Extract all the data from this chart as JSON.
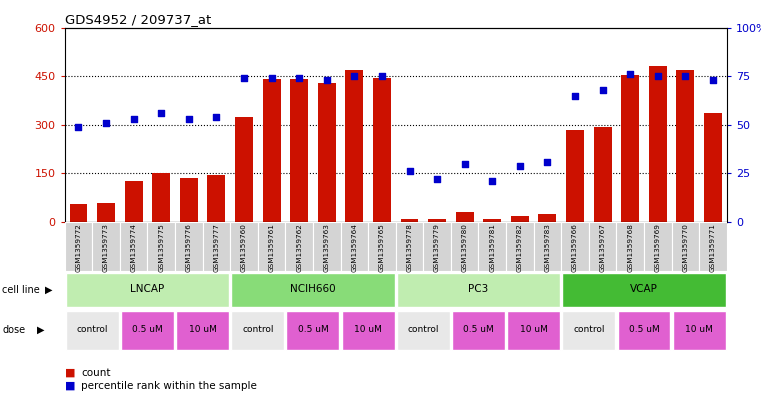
{
  "title": "GDS4952 / 209737_at",
  "samples": [
    "GSM1359772",
    "GSM1359773",
    "GSM1359774",
    "GSM1359775",
    "GSM1359776",
    "GSM1359777",
    "GSM1359760",
    "GSM1359761",
    "GSM1359762",
    "GSM1359763",
    "GSM1359764",
    "GSM1359765",
    "GSM1359778",
    "GSM1359779",
    "GSM1359780",
    "GSM1359781",
    "GSM1359782",
    "GSM1359783",
    "GSM1359766",
    "GSM1359767",
    "GSM1359768",
    "GSM1359769",
    "GSM1359770",
    "GSM1359771"
  ],
  "counts": [
    55,
    58,
    128,
    150,
    135,
    145,
    325,
    440,
    440,
    430,
    470,
    445,
    8,
    10,
    30,
    8,
    18,
    25,
    285,
    292,
    455,
    480,
    470,
    335
  ],
  "percentile_ranks": [
    49,
    51,
    53,
    56,
    53,
    54,
    74,
    74,
    74,
    73,
    75,
    75,
    26,
    22,
    30,
    21,
    29,
    31,
    65,
    68,
    76,
    75,
    75,
    73
  ],
  "cell_lines": [
    {
      "name": "LNCAP",
      "start": 0,
      "end": 6,
      "color": "#c8f0c0"
    },
    {
      "name": "NCIH660",
      "start": 6,
      "end": 12,
      "color": "#90e080"
    },
    {
      "name": "PC3",
      "start": 12,
      "end": 18,
      "color": "#c8f0c0"
    },
    {
      "name": "VCAP",
      "start": 18,
      "end": 24,
      "color": "#50cc40"
    }
  ],
  "dose_spans": [
    [
      0,
      2,
      "control",
      "#e8e8e8"
    ],
    [
      2,
      4,
      "0.5 uM",
      "#e060d0"
    ],
    [
      4,
      6,
      "10 uM",
      "#e060d0"
    ],
    [
      6,
      8,
      "control",
      "#e8e8e8"
    ],
    [
      8,
      10,
      "0.5 uM",
      "#e060d0"
    ],
    [
      10,
      12,
      "10 uM",
      "#e060d0"
    ],
    [
      12,
      14,
      "control",
      "#e8e8e8"
    ],
    [
      14,
      16,
      "0.5 uM",
      "#e060d0"
    ],
    [
      16,
      18,
      "10 uM",
      "#e060d0"
    ],
    [
      18,
      20,
      "control",
      "#e8e8e8"
    ],
    [
      20,
      22,
      "0.5 uM",
      "#e060d0"
    ],
    [
      22,
      24,
      "10 uM",
      "#e060d0"
    ]
  ],
  "bar_color": "#cc1100",
  "dot_color": "#0000cc",
  "left_ylim": [
    0,
    600
  ],
  "left_yticks": [
    0,
    150,
    300,
    450,
    600
  ],
  "right_ylim": [
    0,
    100
  ],
  "right_yticks": [
    0,
    25,
    50,
    75,
    100
  ],
  "right_yticklabels": [
    "0",
    "25",
    "50",
    "75",
    "100%"
  ],
  "left_ycolor": "#cc1100",
  "right_ycolor": "#0000cc",
  "background_color": "#ffffff"
}
